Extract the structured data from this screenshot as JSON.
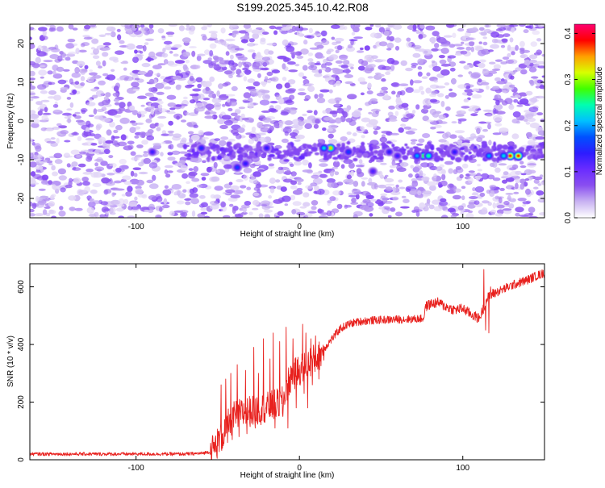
{
  "page": {
    "title": "S199.2025.345.10.42.R08"
  },
  "colors": {
    "snr_line": "#e8211e",
    "frame": "#000000",
    "spectrogram_background": "#ffffff",
    "noise_speckle": "#8a4ff0",
    "colormap": [
      "#ffffff",
      "#c9b3f2",
      "#8a4ff0",
      "#6a2cff",
      "#2d1cff",
      "#0050ff",
      "#00c0ff",
      "#00ffb0",
      "#40ff00",
      "#d8ff00",
      "#ffa000",
      "#ff0000",
      "#ff0070"
    ]
  },
  "chart_data": [
    {
      "type": "heatmap",
      "title": "S199.2025.345.10.42.R08",
      "xlabel": "Height of straight line (km)",
      "ylabel": "Frequency (Hz)",
      "xlim": [
        -165,
        150
      ],
      "ylim": [
        -25,
        25
      ],
      "xticks": [
        -100,
        0,
        100
      ],
      "yticks": [
        -20,
        -10,
        0,
        10,
        20
      ],
      "colorbar": {
        "label": "Normalized spectral amplitude",
        "range": [
          0,
          0.42
        ],
        "ticks": [
          "0.0",
          "0.1",
          "0.2",
          "0.3",
          "0.4"
        ],
        "tick_values": [
          0,
          0.1,
          0.2,
          0.3,
          0.4
        ],
        "colormap": "rainbow (white-purple-blue-cyan-green-yellow-red-magenta)"
      },
      "background_noise_level": 0.04,
      "signal_band": {
        "frequency_center_hz": -8,
        "frequency_halfwidth_hz": 3,
        "x_start_km": -70,
        "x_end_km": 150
      },
      "hotspots": [
        {
          "x": 19,
          "y": -7,
          "value": 0.33
        },
        {
          "x": 15,
          "y": -7,
          "value": 0.22
        },
        {
          "x": 76,
          "y": -9,
          "value": 0.28
        },
        {
          "x": 79,
          "y": -9,
          "value": 0.25
        },
        {
          "x": 72,
          "y": -9,
          "value": 0.2
        },
        {
          "x": 129,
          "y": -9,
          "value": 0.38
        },
        {
          "x": 134,
          "y": -9,
          "value": 0.38
        },
        {
          "x": 125,
          "y": -9,
          "value": 0.22
        },
        {
          "x": 116,
          "y": -9,
          "value": 0.2
        },
        {
          "x": -38,
          "y": -12,
          "value": 0.16
        },
        {
          "x": -33,
          "y": -11,
          "value": 0.14
        },
        {
          "x": -60,
          "y": -7,
          "value": 0.15
        },
        {
          "x": -20,
          "y": -7,
          "value": 0.14
        },
        {
          "x": 30,
          "y": -8,
          "value": 0.16
        },
        {
          "x": 55,
          "y": -8,
          "value": 0.14
        },
        {
          "x": 60,
          "y": -9,
          "value": 0.13
        },
        {
          "x": 95,
          "y": -8,
          "value": 0.14
        },
        {
          "x": -90,
          "y": -8,
          "value": 0.13
        },
        {
          "x": 45,
          "y": -13,
          "value": 0.12
        }
      ]
    },
    {
      "type": "line",
      "xlabel": "Height of straight line (km)",
      "ylabel": "SNR (10 * v/v)",
      "xlim": [
        -165,
        150
      ],
      "ylim": [
        0,
        680
      ],
      "xticks": [
        -100,
        0,
        100
      ],
      "yticks": [
        0,
        200,
        400,
        600
      ],
      "series": [
        {
          "color": "#e8211e",
          "noise": "high-frequency jitter; large spikes between x = -50 and x = 10",
          "x": [
            -165,
            -140,
            -100,
            -70,
            -60,
            -55,
            -52,
            -50,
            -47,
            -45,
            -40,
            -35,
            -30,
            -25,
            -20,
            -15,
            -10,
            -8,
            -5,
            -2,
            0,
            2,
            4,
            6,
            8,
            10,
            15,
            20,
            25,
            30,
            35,
            40,
            50,
            60,
            70,
            76,
            77,
            80,
            85,
            90,
            95,
            100,
            105,
            110,
            113,
            115,
            118,
            120,
            125,
            130,
            135,
            140,
            145,
            150
          ],
          "y": [
            20,
            20,
            20,
            20,
            22,
            28,
            40,
            60,
            85,
            110,
            150,
            160,
            170,
            175,
            180,
            190,
            200,
            250,
            290,
            300,
            310,
            320,
            330,
            340,
            345,
            350,
            385,
            420,
            455,
            470,
            478,
            482,
            485,
            487,
            488,
            490,
            530,
            540,
            545,
            530,
            520,
            525,
            505,
            490,
            530,
            560,
            575,
            580,
            592,
            605,
            615,
            625,
            638,
            648
          ]
        }
      ],
      "spikes": [
        {
          "x": -48,
          "y": 260
        },
        {
          "x": -47,
          "y": 40
        },
        {
          "x": -45,
          "y": 280
        },
        {
          "x": -44,
          "y": 60
        },
        {
          "x": -42,
          "y": 300
        },
        {
          "x": -41,
          "y": 70
        },
        {
          "x": -38,
          "y": 330
        },
        {
          "x": -37,
          "y": 80
        },
        {
          "x": -33,
          "y": 310
        },
        {
          "x": -32,
          "y": 90
        },
        {
          "x": -28,
          "y": 390
        },
        {
          "x": -27,
          "y": 110
        },
        {
          "x": -25,
          "y": 300
        },
        {
          "x": -22,
          "y": 420
        },
        {
          "x": -21,
          "y": 130
        },
        {
          "x": -18,
          "y": 350
        },
        {
          "x": -16,
          "y": 440
        },
        {
          "x": -15,
          "y": 110
        },
        {
          "x": -12,
          "y": 410
        },
        {
          "x": -10,
          "y": 150
        },
        {
          "x": -8,
          "y": 460
        },
        {
          "x": -7,
          "y": 110
        },
        {
          "x": -4,
          "y": 420
        },
        {
          "x": -2,
          "y": 180
        },
        {
          "x": 2,
          "y": 470
        },
        {
          "x": 3,
          "y": 230
        },
        {
          "x": 4,
          "y": 440
        },
        {
          "x": 5,
          "y": 180
        },
        {
          "x": 7,
          "y": 420
        },
        {
          "x": 8,
          "y": 260
        },
        {
          "x": 10,
          "y": 430
        },
        {
          "x": 12,
          "y": 280
        },
        {
          "x": 113,
          "y": 660
        },
        {
          "x": 114,
          "y": 450
        },
        {
          "x": 116,
          "y": 440
        },
        {
          "x": 117,
          "y": 600
        }
      ]
    }
  ]
}
